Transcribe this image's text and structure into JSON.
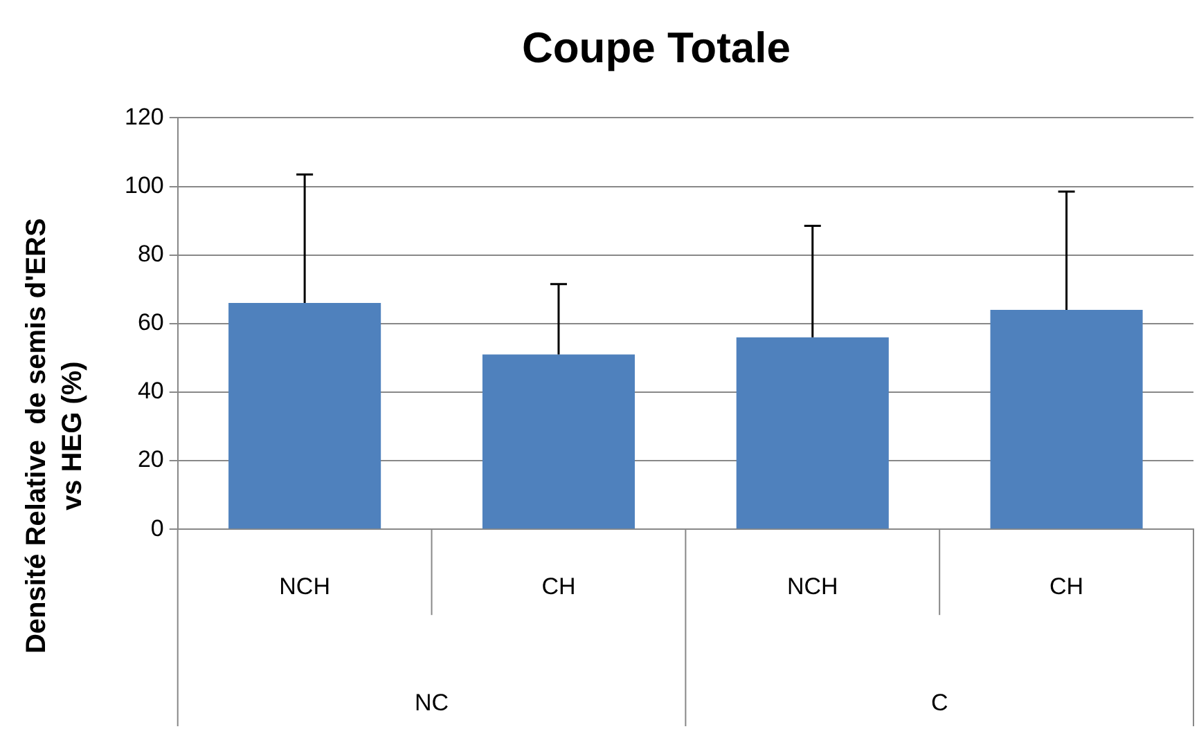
{
  "chart_data": {
    "type": "bar",
    "title": "Coupe Totale",
    "ylabel": "Densité Relative  de semis d'ERS\nvs HEG (%)",
    "categories": [
      "NCH",
      "CH",
      "NCH",
      "CH"
    ],
    "values": [
      66,
      51,
      56,
      64
    ],
    "errors": [
      [
        66,
        103.5
      ],
      [
        51,
        71.5
      ],
      [
        56,
        88.5
      ],
      [
        64,
        98.5
      ]
    ],
    "color": "#4f81bd",
    "annotations": [
      "NC",
      "C"
    ],
    "ylim": [
      0,
      120
    ],
    "yticks": [
      0,
      20,
      40,
      60,
      80,
      100,
      120
    ],
    "grid": "y",
    "legend": false
  }
}
